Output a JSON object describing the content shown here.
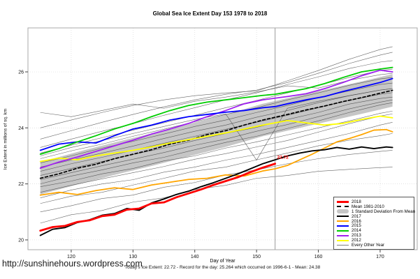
{
  "title": "Global Sea Ice Extent Day 153 1978 to 2018",
  "footer": {
    "url": "http://sunshinehours.wordpress.com",
    "stats": "Today's Ice Extent: 22.72  - Record for the day: 25.264 which occurred on 1996-6-1  - Mean: 24.38"
  },
  "chart_data": {
    "type": "line",
    "title": "Global Sea Ice Extent Day 153 1978 to 2018",
    "xlabel": "Day of Year",
    "ylabel": "Ice Extent in millions of sq. km",
    "xlim": [
      113,
      176
    ],
    "ylim": [
      19.65,
      27.57
    ],
    "xticks": [
      120,
      130,
      140,
      150,
      160,
      170
    ],
    "yticks": [
      20,
      22,
      24,
      26
    ],
    "grid": true,
    "vline_day": 153,
    "annotation": {
      "text": "22.72",
      "day": 153,
      "value": 22.9,
      "color": "#ff0000"
    },
    "band": {
      "name": "1 Standard Deviation From Mean",
      "color": "#c6c6c6",
      "x": [
        115,
        121,
        127,
        133,
        139,
        145,
        151,
        155,
        161,
        167,
        172
      ],
      "upper": [
        22.78,
        23.14,
        23.48,
        23.8,
        24.14,
        24.48,
        24.86,
        25.06,
        25.36,
        25.66,
        25.92
      ],
      "lower": [
        21.62,
        21.98,
        22.32,
        22.64,
        22.98,
        23.32,
        23.7,
        23.9,
        24.2,
        24.5,
        24.76
      ]
    },
    "series": [
      {
        "name": "mean-1981-2010",
        "label": "Mean 1981-2010",
        "color": "#000000",
        "width": 1.7,
        "dash": "4,3",
        "x": [
          115,
          118,
          121,
          124,
          127,
          130,
          133,
          136,
          139,
          142,
          145,
          148,
          151,
          153,
          155,
          158,
          161,
          164,
          167,
          170,
          172
        ],
        "y": [
          22.2,
          22.36,
          22.56,
          22.7,
          22.9,
          23.06,
          23.22,
          23.42,
          23.56,
          23.76,
          23.9,
          24.1,
          24.28,
          24.38,
          24.48,
          24.64,
          24.78,
          24.94,
          25.08,
          25.24,
          25.34
        ]
      },
      {
        "name": "2012",
        "label": "2012",
        "color": "#ffff00",
        "width": 1.8,
        "x": [
          115,
          118,
          121,
          124,
          127,
          130,
          133,
          136,
          139,
          142,
          145,
          148,
          151,
          153,
          155,
          158,
          161,
          164,
          167,
          170,
          172
        ],
        "y": [
          22.8,
          22.92,
          22.86,
          23.0,
          23.1,
          23.2,
          23.32,
          23.46,
          23.58,
          23.7,
          23.82,
          23.96,
          24.1,
          24.18,
          24.26,
          24.18,
          24.1,
          24.16,
          24.3,
          24.42,
          24.36
        ]
      },
      {
        "name": "2013",
        "label": "2013",
        "color": "#a020f0",
        "width": 1.8,
        "x": [
          115,
          118,
          121,
          124,
          127,
          130,
          133,
          136,
          139,
          142,
          145,
          148,
          151,
          153,
          155,
          158,
          161,
          164,
          167,
          170,
          172
        ],
        "y": [
          22.56,
          22.78,
          22.96,
          23.16,
          23.36,
          23.56,
          23.78,
          23.96,
          24.16,
          24.4,
          24.62,
          24.86,
          25.0,
          25.06,
          25.12,
          25.22,
          25.4,
          25.62,
          25.86,
          26.06,
          26.0
        ]
      },
      {
        "name": "2015",
        "label": "2015",
        "color": "#0000ff",
        "width": 1.8,
        "x": [
          115,
          118,
          121,
          124,
          127,
          130,
          133,
          136,
          139,
          142,
          145,
          148,
          151,
          153,
          155,
          158,
          161,
          164,
          167,
          170,
          172
        ],
        "y": [
          23.2,
          23.42,
          23.5,
          23.46,
          23.72,
          23.96,
          24.1,
          24.28,
          24.4,
          24.48,
          24.56,
          24.62,
          24.72,
          24.76,
          24.86,
          25.0,
          25.12,
          25.3,
          25.46,
          25.62,
          25.76
        ]
      },
      {
        "name": "2014",
        "label": "2014",
        "color": "#00cd00",
        "width": 1.8,
        "x": [
          115,
          118,
          121,
          124,
          127,
          130,
          133,
          136,
          139,
          142,
          145,
          148,
          151,
          153,
          155,
          158,
          161,
          164,
          167,
          170,
          172
        ],
        "y": [
          23.06,
          23.26,
          23.5,
          23.72,
          23.96,
          24.16,
          24.4,
          24.62,
          24.8,
          24.92,
          25.0,
          25.08,
          25.16,
          25.2,
          25.28,
          25.4,
          25.58,
          25.8,
          26.0,
          26.1,
          26.16
        ]
      },
      {
        "name": "2016",
        "label": "2016",
        "color": "#ffa500",
        "width": 1.8,
        "x": [
          115,
          118,
          121,
          124,
          127,
          130,
          133,
          136,
          139,
          142,
          145,
          148,
          151,
          153,
          155,
          157,
          159,
          161,
          163,
          165,
          167,
          169,
          171,
          172
        ],
        "y": [
          21.6,
          21.7,
          21.62,
          21.76,
          21.86,
          21.8,
          21.96,
          22.06,
          22.16,
          22.2,
          22.32,
          22.28,
          22.46,
          22.54,
          22.66,
          22.86,
          23.06,
          23.28,
          23.5,
          23.62,
          23.76,
          23.92,
          23.94,
          23.86
        ]
      },
      {
        "name": "2017",
        "label": "2017",
        "color": "#000000",
        "width": 1.9,
        "x": [
          115,
          117,
          119,
          121,
          123,
          125,
          127,
          129,
          131,
          133,
          135,
          137,
          139,
          141,
          143,
          145,
          147,
          149,
          151,
          153,
          155,
          157,
          159,
          161,
          163,
          165,
          167,
          169,
          171,
          172
        ],
        "y": [
          20.16,
          20.38,
          20.44,
          20.62,
          20.72,
          20.88,
          20.94,
          21.12,
          21.06,
          21.32,
          21.46,
          21.62,
          21.74,
          21.9,
          22.04,
          22.2,
          22.36,
          22.54,
          22.72,
          22.86,
          23.0,
          23.1,
          23.18,
          23.22,
          23.3,
          23.24,
          23.32,
          23.26,
          23.32,
          23.3
        ]
      },
      {
        "name": "2018",
        "label": "2018",
        "color": "#ff0000",
        "width": 2.8,
        "x": [
          115,
          117,
          119,
          121,
          123,
          125,
          127,
          129,
          131,
          133,
          135,
          137,
          139,
          141,
          143,
          145,
          147,
          149,
          151,
          153
        ],
        "y": [
          20.33,
          20.46,
          20.5,
          20.64,
          20.7,
          20.85,
          20.9,
          21.08,
          21.12,
          21.3,
          21.34,
          21.52,
          21.66,
          21.8,
          21.96,
          22.1,
          22.24,
          22.42,
          22.58,
          22.72
        ]
      }
    ],
    "background_series": {
      "name": "Every Other Year",
      "color": "#3f3f3f",
      "width": 0.6,
      "x": [
        115,
        120,
        125,
        130,
        135,
        140,
        145,
        150,
        155,
        160,
        165,
        170,
        172
      ],
      "lines": [
        [
          20.6,
          20.9,
          21.05,
          21.35,
          21.5,
          21.8,
          21.95,
          22.2,
          22.3,
          22.45,
          22.52,
          22.58,
          22.6
        ],
        [
          21.0,
          21.22,
          21.48,
          21.6,
          21.88,
          22.05,
          22.32,
          22.5,
          22.72,
          22.9,
          23.05,
          23.16,
          23.2
        ],
        [
          21.3,
          21.56,
          21.7,
          21.96,
          22.2,
          22.46,
          22.6,
          22.86,
          23.1,
          23.36,
          23.56,
          23.72,
          23.8
        ],
        [
          21.5,
          21.78,
          22.0,
          22.15,
          22.42,
          22.6,
          22.85,
          23.05,
          23.3,
          23.55,
          23.8,
          24.1,
          24.2
        ],
        [
          21.7,
          21.95,
          22.18,
          22.4,
          22.62,
          22.88,
          23.08,
          23.32,
          23.55,
          23.85,
          24.15,
          24.42,
          24.5
        ],
        [
          21.9,
          22.1,
          22.36,
          22.55,
          22.82,
          23.0,
          23.28,
          23.5,
          23.75,
          24.0,
          24.25,
          24.52,
          24.6
        ],
        [
          22.0,
          22.28,
          22.5,
          22.75,
          22.95,
          23.22,
          23.48,
          23.7,
          23.98,
          24.25,
          24.55,
          24.82,
          24.9
        ],
        [
          22.15,
          22.4,
          22.65,
          22.88,
          23.12,
          23.38,
          23.6,
          23.88,
          24.12,
          24.4,
          24.68,
          24.92,
          25.0
        ],
        [
          22.3,
          22.55,
          22.8,
          23.05,
          23.28,
          23.55,
          23.8,
          24.02,
          24.3,
          24.55,
          24.85,
          25.05,
          25.1
        ],
        [
          22.45,
          22.72,
          22.95,
          23.2,
          23.45,
          23.7,
          23.95,
          24.2,
          24.45,
          24.72,
          24.98,
          25.2,
          25.26
        ],
        [
          22.6,
          22.85,
          23.1,
          23.35,
          23.62,
          23.88,
          24.1,
          24.38,
          24.62,
          24.9,
          25.15,
          25.35,
          25.4
        ],
        [
          22.75,
          23.0,
          23.28,
          23.52,
          23.78,
          24.05,
          24.28,
          24.55,
          24.8,
          25.08,
          25.32,
          25.55,
          25.6
        ],
        [
          22.9,
          23.18,
          23.42,
          23.7,
          23.95,
          24.22,
          24.48,
          24.72,
          25.0,
          25.25,
          25.52,
          25.75,
          25.8
        ],
        [
          23.1,
          23.38,
          23.65,
          23.92,
          24.18,
          24.45,
          24.72,
          24.98,
          25.25,
          25.52,
          25.8,
          26.05,
          26.1
        ],
        [
          23.3,
          23.6,
          23.88,
          24.15,
          24.45,
          24.72,
          25.0,
          25.25,
          25.55,
          25.82,
          26.12,
          26.35,
          26.4
        ],
        [
          23.6,
          23.9,
          24.2,
          24.48,
          24.75,
          25.0,
          25.2,
          25.35,
          25.62,
          25.95,
          26.3,
          26.6,
          26.7
        ],
        [
          24.0,
          24.28,
          24.55,
          24.8,
          25.0,
          25.15,
          25.25,
          25.32,
          25.68,
          26.05,
          26.45,
          26.8,
          26.9
        ],
        [
          24.55,
          24.4,
          24.62,
          24.85,
          24.7,
          24.95,
          25.1,
          25.28,
          25.5,
          25.42,
          25.7,
          25.9,
          25.95
        ],
        [
          23.0,
          23.3,
          23.55,
          23.8,
          24.05,
          24.3,
          24.5,
          22.85,
          24.7,
          24.95,
          25.15,
          25.35,
          25.4
        ]
      ]
    },
    "legend": {
      "position": "bottom-right",
      "items": [
        {
          "label": "2018",
          "swatch": "line",
          "color": "#ff0000",
          "lw": 3
        },
        {
          "label": "Mean 1981-2010",
          "swatch": "dashed",
          "color": "#000000",
          "lw": 2
        },
        {
          "label": "1 Standard Deviation From Mean",
          "swatch": "band",
          "color": "#c6c6c6",
          "lw": 6
        },
        {
          "label": "2017",
          "swatch": "line",
          "color": "#000000",
          "lw": 2
        },
        {
          "label": "2016",
          "swatch": "line",
          "color": "#ffa500",
          "lw": 2
        },
        {
          "label": "2015",
          "swatch": "line",
          "color": "#0000ff",
          "lw": 2
        },
        {
          "label": "2014",
          "swatch": "line",
          "color": "#00cd00",
          "lw": 2
        },
        {
          "label": "2013",
          "swatch": "line",
          "color": "#a020f0",
          "lw": 2
        },
        {
          "label": "2012",
          "swatch": "line",
          "color": "#ffff00",
          "lw": 2
        },
        {
          "label": "Every Other Year",
          "swatch": "line",
          "color": "#808080",
          "lw": 1
        }
      ]
    }
  }
}
